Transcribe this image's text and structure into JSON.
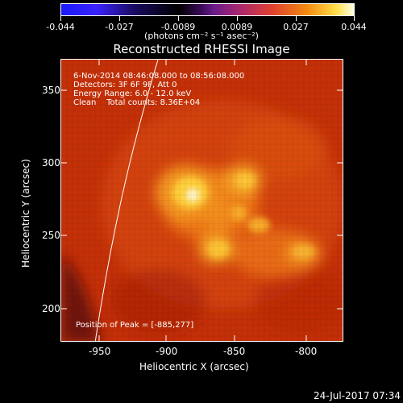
{
  "colorbar": {
    "tick_labels": [
      "-0.044",
      "-0.027",
      "-0.0089",
      "0.0089",
      "0.027",
      "0.044"
    ],
    "units": "(photons cm⁻² s⁻¹ asec⁻²)"
  },
  "title": "Reconstructed RHESSI Image",
  "annotations": {
    "time_range": "6-Nov-2014 08:46:08.000 to 08:56:08.000",
    "detectors": "Detectors: 3F 6F 9F, Att 0",
    "energy": "Energy Range: 6.0 - 12.0 keV",
    "clean": "Clean    Total counts: 8.36E+04",
    "peak": "Position of Peak = [-885,277]"
  },
  "axes": {
    "x_label": "Heliocentric X (arcsec)",
    "y_label": "Heliocentric Y (arcsec)",
    "x_ticks": [
      "-950",
      "-900",
      "-850",
      "-800"
    ],
    "y_ticks": [
      "350",
      "300",
      "250",
      "200"
    ],
    "x_range": [
      -972,
      -778
    ],
    "y_range": [
      175,
      369
    ]
  },
  "timestamp": "24-Jul-2017 07:34"
}
